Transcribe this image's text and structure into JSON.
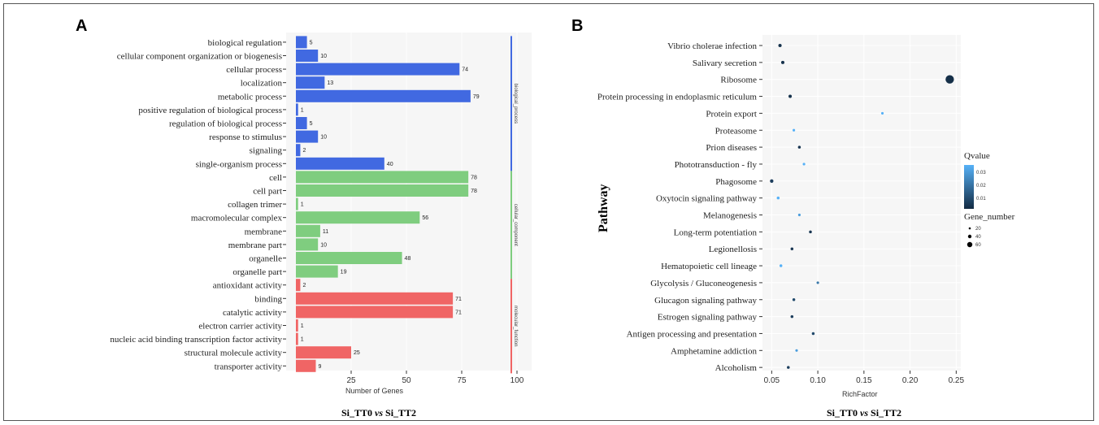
{
  "chart_data": [
    {
      "type": "bar",
      "panel_label": "A",
      "orientation": "horizontal",
      "categories": [
        "biological regulation",
        "cellular component organization or biogenesis",
        "cellular process",
        "localization",
        "metabolic process",
        "positive regulation of biological process",
        "regulation of biological process",
        "response to stimulus",
        "signaling",
        "single-organism process",
        "cell",
        "cell part",
        "collagen trimer",
        "macromolecular complex",
        "membrane",
        "membrane part",
        "organelle",
        "organelle part",
        "antioxidant activity",
        "binding",
        "catalytic activity",
        "electron carrier activity",
        "nucleic acid binding transcription factor activity",
        "structural molecule activity",
        "transporter activity"
      ],
      "values": [
        5,
        10,
        74,
        13,
        79,
        1,
        5,
        10,
        2,
        40,
        78,
        78,
        1,
        56,
        11,
        10,
        48,
        19,
        2,
        71,
        71,
        1,
        1,
        25,
        9
      ],
      "groups": [
        {
          "name": "biological_process",
          "count": 10,
          "color": "#4169e1"
        },
        {
          "name": "cellular_component",
          "count": 8,
          "color": "#7fcd7f"
        },
        {
          "name": "molecular_function",
          "count": 7,
          "color": "#f06565"
        }
      ],
      "xticks": [
        "25",
        "50",
        "75",
        "100"
      ],
      "xlabel": "Number of Genes",
      "xlim": [
        0,
        100
      ],
      "comparison": [
        "Si_TT0 ",
        "vs",
        " Si_TT2"
      ]
    },
    {
      "type": "scatter",
      "panel_label": "B",
      "categories": [
        "Vibrio cholerae infection",
        "Salivary secretion",
        "Ribosome",
        "Protein processing in endoplasmic reticulum",
        "Protein export",
        "Proteasome",
        "Prion diseases",
        "Phototransduction - fly",
        "Phagosome",
        "Oxytocin signaling pathway",
        "Melanogenesis",
        "Long-term potentiation",
        "Legionellosis",
        "Hematopoietic cell lineage",
        "Glycolysis / Gluconeogenesis",
        "Glucagon signaling pathway",
        "Estrogen signaling pathway",
        "Antigen processing and presentation",
        "Amphetamine addiction",
        "Alcoholism"
      ],
      "rich_factor": [
        0.059,
        0.062,
        0.243,
        0.07,
        0.17,
        0.074,
        0.08,
        0.085,
        0.05,
        0.057,
        0.08,
        0.092,
        0.072,
        0.06,
        0.1,
        0.074,
        0.072,
        0.095,
        0.077,
        0.068
      ],
      "gene_number": [
        5,
        5,
        63,
        5,
        2,
        2,
        3,
        2,
        6,
        3,
        2,
        3,
        3,
        3,
        2,
        3,
        3,
        3,
        2,
        3
      ],
      "qvalue": [
        0.002,
        0.002,
        0.001,
        0.002,
        0.035,
        0.035,
        0.003,
        0.035,
        0.005,
        0.035,
        0.03,
        0.003,
        0.003,
        0.035,
        0.02,
        0.008,
        0.005,
        0.008,
        0.03,
        0.005
      ],
      "xticks": [
        "0.05",
        "0.10",
        "0.15",
        "0.20",
        "0.25"
      ],
      "xlim": [
        0.04,
        0.255
      ],
      "xlabel": "RichFactor",
      "ylabel": "Pathway",
      "legend": {
        "qvalue_title": "Qvalue",
        "qvalue_ticks": [
          "0.03",
          "0.02",
          "0.01"
        ],
        "gene_title": "Gene_number",
        "gene_sizes": [
          "20",
          "40",
          "60"
        ],
        "placement": "right"
      },
      "grid": true,
      "comparison": [
        "Si_TT0 ",
        "vs",
        " Si_TT2"
      ]
    }
  ]
}
